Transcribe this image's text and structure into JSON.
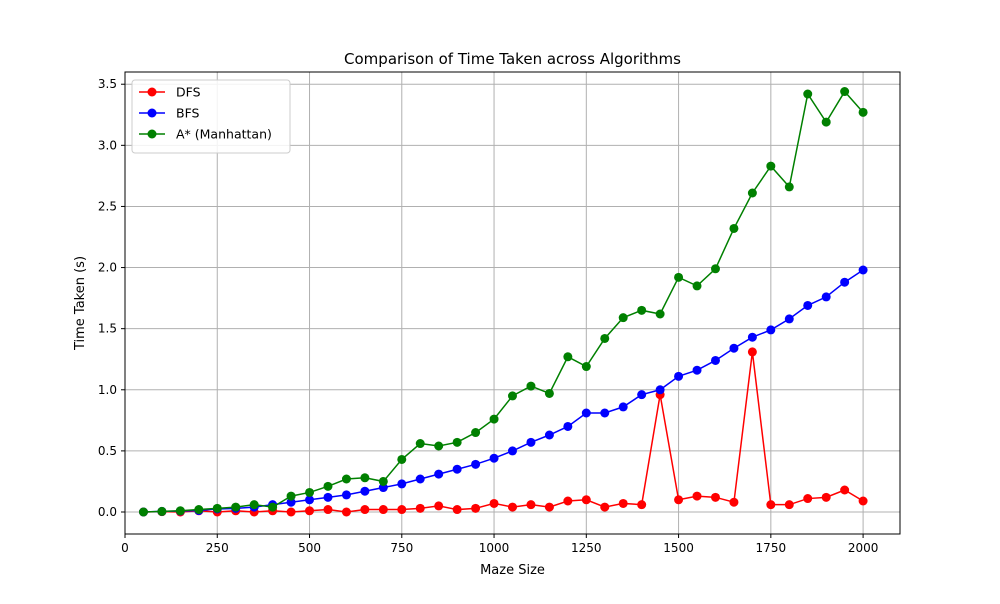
{
  "chart_data": {
    "type": "line",
    "title": "Comparison of Time Taken across Algorithms",
    "xlabel": "Maze Size",
    "ylabel": "Time Taken (s)",
    "xlim": [
      0,
      2100
    ],
    "ylim": [
      -0.18,
      3.6
    ],
    "xticks": [
      0,
      250,
      500,
      750,
      1000,
      1250,
      1500,
      1750,
      2000
    ],
    "yticks": [
      0.0,
      0.5,
      1.0,
      1.5,
      2.0,
      2.5,
      3.0,
      3.5
    ],
    "xtick_labels": [
      "0",
      "250",
      "500",
      "750",
      "1000",
      "1250",
      "1500",
      "1750",
      "2000"
    ],
    "ytick_labels": [
      "0.0",
      "0.5",
      "1.0",
      "1.5",
      "2.0",
      "2.5",
      "3.0",
      "3.5"
    ],
    "grid": true,
    "legend_position": "top-left",
    "x": [
      50,
      100,
      150,
      200,
      250,
      300,
      350,
      400,
      450,
      500,
      550,
      600,
      650,
      700,
      750,
      800,
      850,
      900,
      950,
      1000,
      1050,
      1100,
      1150,
      1200,
      1250,
      1300,
      1350,
      1400,
      1450,
      1500,
      1550,
      1600,
      1650,
      1700,
      1750,
      1800,
      1850,
      1900,
      1950,
      2000
    ],
    "series": [
      {
        "name": "DFS",
        "color": "#ff0000",
        "values": [
          0.0,
          0.003,
          0.0,
          0.01,
          0.0,
          0.01,
          0.0,
          0.01,
          0.0,
          0.01,
          0.02,
          0.0,
          0.02,
          0.02,
          0.02,
          0.03,
          0.05,
          0.02,
          0.03,
          0.07,
          0.04,
          0.06,
          0.04,
          0.09,
          0.1,
          0.04,
          0.07,
          0.06,
          0.96,
          0.1,
          0.13,
          0.12,
          0.08,
          1.31,
          0.06,
          0.06,
          0.11,
          0.12,
          0.18,
          0.09
        ]
      },
      {
        "name": "BFS",
        "color": "#0000ff",
        "values": [
          0.0,
          0.005,
          0.008,
          0.012,
          0.025,
          0.03,
          0.04,
          0.06,
          0.08,
          0.1,
          0.12,
          0.14,
          0.17,
          0.2,
          0.23,
          0.27,
          0.31,
          0.35,
          0.39,
          0.44,
          0.5,
          0.57,
          0.63,
          0.7,
          0.81,
          0.81,
          0.86,
          0.96,
          1.0,
          1.11,
          1.16,
          1.24,
          1.34,
          1.43,
          1.49,
          1.58,
          1.69,
          1.76,
          1.88,
          1.98
        ]
      },
      {
        "name": "A* (Manhattan)",
        "color": "#008000",
        "values": [
          0.0,
          0.005,
          0.01,
          0.02,
          0.03,
          0.04,
          0.06,
          0.04,
          0.13,
          0.16,
          0.21,
          0.27,
          0.28,
          0.25,
          0.43,
          0.56,
          0.54,
          0.57,
          0.65,
          0.76,
          0.95,
          1.03,
          0.97,
          1.27,
          1.19,
          1.42,
          1.59,
          1.65,
          1.62,
          1.92,
          1.85,
          1.99,
          2.32,
          2.61,
          2.83,
          2.66,
          3.42,
          3.19,
          3.44,
          3.27
        ]
      }
    ]
  }
}
